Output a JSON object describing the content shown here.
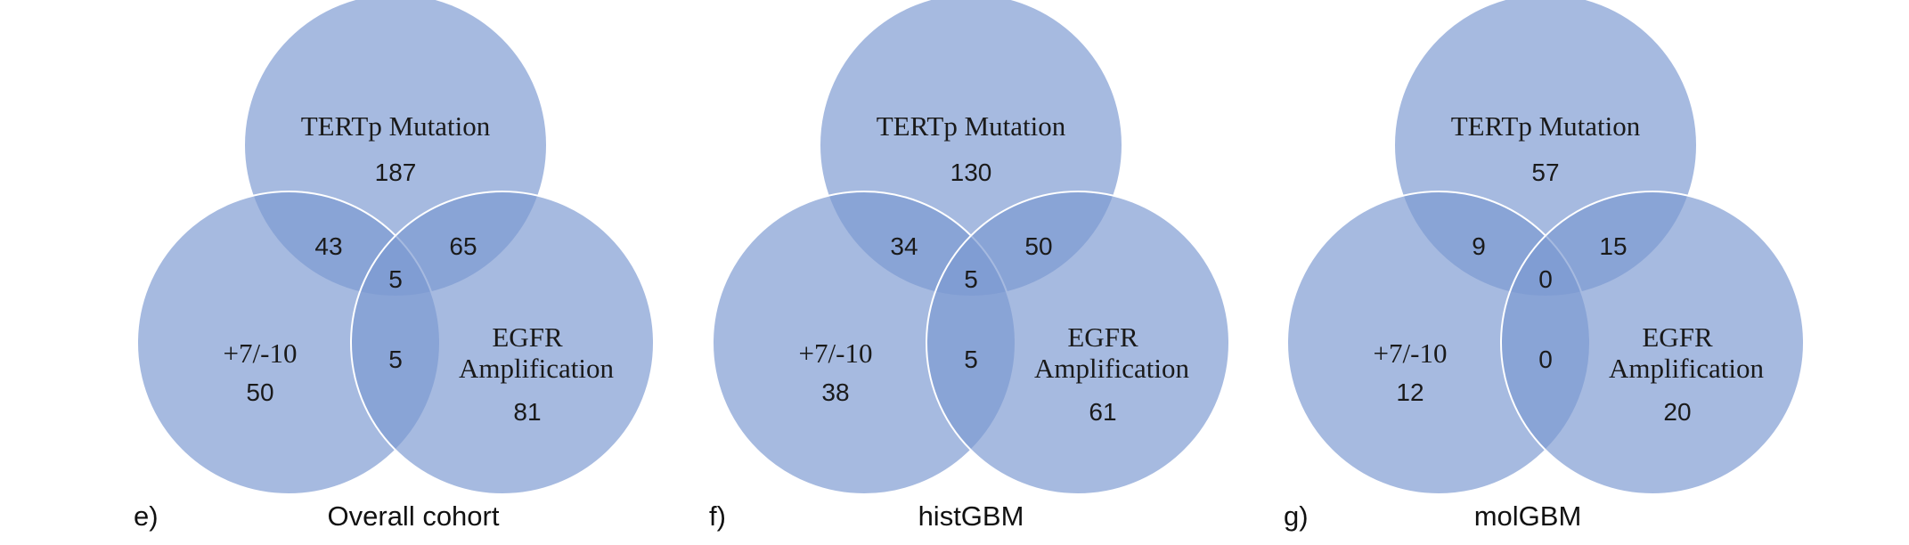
{
  "colors": {
    "circle_fill": "#7c99d2",
    "circle_stroke": "#ffffff",
    "text": "#1a1a1a"
  },
  "panels": [
    {
      "letter": "e)",
      "title": "Overall cohort",
      "sets": {
        "tert": "TERTp Mutation",
        "chr": "+7/-10",
        "egfr_line1": "EGFR",
        "egfr_line2": "Amplification"
      },
      "counts": {
        "tert_only": "187",
        "chr_only": "50",
        "egfr_only": "81",
        "tert_chr": "43",
        "tert_egfr": "65",
        "chr_egfr": "5",
        "all_three": "5"
      }
    },
    {
      "letter": "f)",
      "title": "histGBM",
      "sets": {
        "tert": "TERTp Mutation",
        "chr": "+7/-10",
        "egfr_line1": "EGFR",
        "egfr_line2": "Amplification"
      },
      "counts": {
        "tert_only": "130",
        "chr_only": "38",
        "egfr_only": "61",
        "tert_chr": "34",
        "tert_egfr": "50",
        "chr_egfr": "5",
        "all_three": "5"
      }
    },
    {
      "letter": "g)",
      "title": "molGBM",
      "sets": {
        "tert": "TERTp Mutation",
        "chr": "+7/-10",
        "egfr_line1": "EGFR",
        "egfr_line2": "Amplification"
      },
      "counts": {
        "tert_only": "57",
        "chr_only": "12",
        "egfr_only": "20",
        "tert_chr": "9",
        "tert_egfr": "15",
        "chr_egfr": "0",
        "all_three": "0"
      }
    }
  ]
}
